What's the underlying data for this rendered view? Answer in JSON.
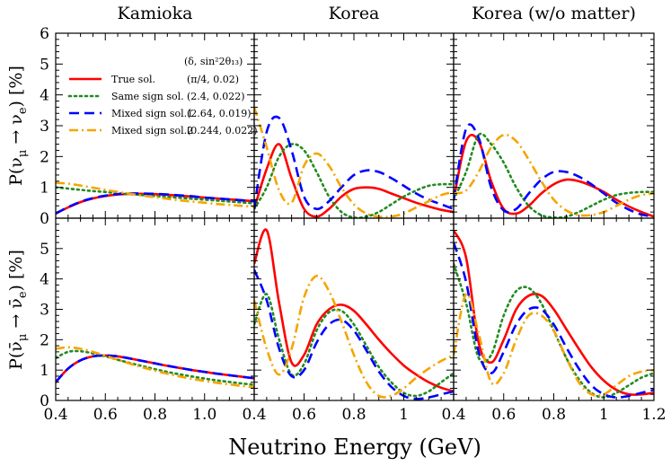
{
  "chart_data": {
    "type": "line",
    "layout": "2 rows x 3 columns, shared axes",
    "column_titles": [
      "Kamioka",
      "Korea",
      "Korea (w/o matter)"
    ],
    "xlabel": "Neutrino Energy (GeV)",
    "x_tick_labels": [
      "0.4",
      "0.6",
      "0.8",
      "1.0",
      "",
      "0.4",
      "0.6",
      "0.8",
      "1",
      "",
      "0.4",
      "0.6",
      "0.8",
      "1",
      "1.2"
    ],
    "xlim": [
      0.4,
      1.2
    ],
    "rows": [
      {
        "ylabel": "P(ν_μ → ν_e) [%]",
        "ylim": [
          0,
          6
        ],
        "y_tick_labels": [
          "0",
          "1",
          "2",
          "3",
          "4",
          "5",
          "6"
        ]
      },
      {
        "ylabel": "P(ν̄_μ → ν̄_e) [%]",
        "ylim": [
          0,
          6
        ],
        "y_tick_labels": [
          "0",
          "1",
          "2",
          "3",
          "4",
          "5",
          ""
        ]
      }
    ],
    "legend": {
      "location": "upper-left of top-left panel",
      "header": "(δ, sin²2θ₁₃)",
      "entries": [
        {
          "label": "True sol.",
          "params": "(π/4, 0.02)",
          "color": "#ff0000",
          "style": "solid"
        },
        {
          "label": "Same sign sol.",
          "params": "(2.4, 0.022)",
          "color": "#228b22",
          "style": "dotted"
        },
        {
          "label": "Mixed sign sol.1",
          "params": "(2.64, 0.019)",
          "color": "#0000ff",
          "style": "dashed"
        },
        {
          "label": "Mixed sign sol.2",
          "params": "(0.244, 0.022)",
          "color": "#f5a500",
          "style": "dashdot"
        }
      ]
    },
    "panels": [
      {
        "row": 0,
        "col": 0,
        "title": "Kamioka",
        "x": [
          0.4,
          0.45,
          0.5,
          0.55,
          0.6,
          0.65,
          0.7,
          0.75,
          0.8,
          0.85,
          0.9,
          0.95,
          1.0,
          1.05,
          1.1,
          1.15,
          1.2
        ],
        "series": [
          {
            "name": "True sol.",
            "values": [
              0.15,
              0.35,
              0.52,
              0.64,
              0.72,
              0.77,
              0.79,
              0.79,
              0.78,
              0.76,
              0.73,
              0.7,
              0.67,
              0.64,
              0.61,
              0.58,
              0.55
            ]
          },
          {
            "name": "Same sign sol.",
            "values": [
              1.0,
              0.96,
              0.92,
              0.88,
              0.85,
              0.81,
              0.78,
              0.75,
              0.72,
              0.69,
              0.66,
              0.63,
              0.6,
              0.57,
              0.54,
              0.51,
              0.48
            ]
          },
          {
            "name": "Mixed sign sol.1",
            "values": [
              0.15,
              0.36,
              0.53,
              0.65,
              0.73,
              0.78,
              0.8,
              0.8,
              0.79,
              0.77,
              0.74,
              0.71,
              0.67,
              0.64,
              0.61,
              0.58,
              0.55
            ]
          },
          {
            "name": "Mixed sign sol.2",
            "values": [
              1.15,
              1.12,
              1.06,
              0.99,
              0.92,
              0.85,
              0.79,
              0.73,
              0.68,
              0.63,
              0.58,
              0.54,
              0.5,
              0.46,
              0.43,
              0.4,
              0.37
            ]
          }
        ]
      },
      {
        "row": 0,
        "col": 1,
        "title": "Korea",
        "x": [
          0.4,
          0.45,
          0.5,
          0.55,
          0.6,
          0.65,
          0.7,
          0.75,
          0.8,
          0.85,
          0.9,
          0.95,
          1.0,
          1.05,
          1.1,
          1.15,
          1.2
        ],
        "series": [
          {
            "name": "True sol.",
            "values": [
              0.3,
              1.6,
              2.4,
              1.3,
              0.3,
              0.05,
              0.3,
              0.7,
              0.95,
              1.0,
              0.95,
              0.8,
              0.65,
              0.5,
              0.38,
              0.27,
              0.2
            ]
          },
          {
            "name": "Same sign sol.",
            "values": [
              0.3,
              1.0,
              2.0,
              2.4,
              2.2,
              1.5,
              0.7,
              0.2,
              0.02,
              0.05,
              0.2,
              0.45,
              0.7,
              0.9,
              1.05,
              1.1,
              1.1
            ]
          },
          {
            "name": "Mixed sign sol.1",
            "values": [
              0.3,
              2.8,
              3.25,
              2.2,
              0.7,
              0.3,
              0.55,
              1.0,
              1.4,
              1.55,
              1.5,
              1.3,
              1.05,
              0.8,
              0.6,
              0.45,
              0.3
            ]
          },
          {
            "name": "Mixed sign sol.2",
            "values": [
              3.6,
              2.3,
              0.9,
              0.5,
              1.7,
              2.1,
              1.7,
              1.0,
              0.45,
              0.15,
              0.05,
              0.05,
              0.15,
              0.35,
              0.55,
              0.75,
              0.85
            ]
          }
        ]
      },
      {
        "row": 0,
        "col": 2,
        "title": "Korea (w/o matter)",
        "x": [
          0.4,
          0.45,
          0.5,
          0.55,
          0.6,
          0.65,
          0.7,
          0.75,
          0.8,
          0.85,
          0.9,
          0.95,
          1.0,
          1.05,
          1.1,
          1.15,
          1.2
        ],
        "series": [
          {
            "name": "True sol.",
            "values": [
              0.6,
              2.5,
              2.5,
              1.2,
              0.3,
              0.15,
              0.4,
              0.8,
              1.1,
              1.25,
              1.2,
              1.05,
              0.85,
              0.6,
              0.38,
              0.2,
              0.05
            ]
          },
          {
            "name": "Same sign sol.",
            "values": [
              0.6,
              1.5,
              2.7,
              2.4,
              1.8,
              1.0,
              0.4,
              0.1,
              0.02,
              0.05,
              0.2,
              0.4,
              0.6,
              0.75,
              0.82,
              0.85,
              0.85
            ]
          },
          {
            "name": "Mixed sign sol.1",
            "values": [
              0.6,
              2.9,
              2.6,
              1.0,
              0.25,
              0.3,
              0.8,
              1.25,
              1.5,
              1.5,
              1.35,
              1.1,
              0.8,
              0.5,
              0.28,
              0.12,
              0.05
            ]
          },
          {
            "name": "Mixed sign sol.2",
            "values": [
              0.8,
              0.9,
              1.5,
              2.3,
              2.7,
              2.5,
              1.9,
              1.2,
              0.6,
              0.25,
              0.1,
              0.1,
              0.2,
              0.4,
              0.6,
              0.75,
              0.8
            ]
          }
        ]
      },
      {
        "row": 1,
        "col": 0,
        "title": "",
        "x": [
          0.4,
          0.45,
          0.5,
          0.55,
          0.6,
          0.65,
          0.7,
          0.75,
          0.8,
          0.85,
          0.9,
          0.95,
          1.0,
          1.05,
          1.1,
          1.15,
          1.2
        ],
        "series": [
          {
            "name": "True sol.",
            "values": [
              0.6,
              1.05,
              1.32,
              1.45,
              1.48,
              1.45,
              1.38,
              1.3,
              1.22,
              1.14,
              1.07,
              1.0,
              0.94,
              0.88,
              0.83,
              0.78,
              0.73
            ]
          },
          {
            "name": "Same sign sol.",
            "values": [
              1.4,
              1.6,
              1.62,
              1.55,
              1.45,
              1.34,
              1.23,
              1.13,
              1.03,
              0.94,
              0.86,
              0.79,
              0.72,
              0.66,
              0.61,
              0.56,
              0.52
            ]
          },
          {
            "name": "Mixed sign sol.1",
            "values": [
              0.6,
              1.05,
              1.32,
              1.45,
              1.48,
              1.45,
              1.38,
              1.3,
              1.22,
              1.14,
              1.07,
              1.0,
              0.94,
              0.88,
              0.83,
              0.78,
              0.73
            ]
          },
          {
            "name": "Mixed sign sol.2",
            "values": [
              1.7,
              1.75,
              1.7,
              1.6,
              1.47,
              1.34,
              1.21,
              1.09,
              0.98,
              0.88,
              0.79,
              0.71,
              0.64,
              0.58,
              0.53,
              0.48,
              0.44
            ]
          }
        ]
      },
      {
        "row": 1,
        "col": 1,
        "title": "",
        "x": [
          0.4,
          0.45,
          0.5,
          0.55,
          0.6,
          0.65,
          0.7,
          0.75,
          0.8,
          0.85,
          0.9,
          0.95,
          1.0,
          1.05,
          1.1,
          1.15,
          1.2
        ],
        "series": [
          {
            "name": "True sol.",
            "values": [
              4.5,
              5.6,
              3.2,
              1.25,
              1.5,
              2.5,
              3.0,
              3.15,
              2.95,
              2.5,
              2.0,
              1.55,
              1.15,
              0.85,
              0.6,
              0.42,
              0.3
            ]
          },
          {
            "name": "Same sign sol.",
            "values": [
              2.5,
              3.5,
              2.0,
              0.85,
              1.2,
              2.3,
              2.9,
              2.95,
              2.5,
              1.8,
              1.1,
              0.6,
              0.25,
              0.15,
              0.3,
              0.6,
              0.9
            ]
          },
          {
            "name": "Mixed sign sol.1",
            "values": [
              4.3,
              3.3,
              1.7,
              0.8,
              1.0,
              1.9,
              2.5,
              2.65,
              2.3,
              1.65,
              0.95,
              0.45,
              0.15,
              0.05,
              0.1,
              0.2,
              0.3
            ]
          },
          {
            "name": "Mixed sign sol.2",
            "values": [
              3.3,
              1.7,
              0.85,
              1.7,
              3.4,
              4.1,
              3.6,
              2.6,
              1.5,
              0.6,
              0.15,
              0.15,
              0.4,
              0.75,
              1.05,
              1.3,
              1.5
            ]
          }
        ]
      },
      {
        "row": 1,
        "col": 2,
        "title": "",
        "x": [
          0.4,
          0.45,
          0.5,
          0.55,
          0.6,
          0.65,
          0.7,
          0.75,
          0.8,
          0.85,
          0.9,
          0.95,
          1.0,
          1.05,
          1.1,
          1.15,
          1.2
        ],
        "series": [
          {
            "name": "True sol.",
            "values": [
              5.6,
              4.7,
              1.9,
              1.25,
              2.0,
              3.0,
              3.45,
              3.45,
              3.0,
              2.35,
              1.7,
              1.1,
              0.65,
              0.35,
              0.2,
              0.2,
              0.25
            ]
          },
          {
            "name": "Same sign sol.",
            "values": [
              4.5,
              3.2,
              1.4,
              1.5,
              2.8,
              3.6,
              3.7,
              3.2,
              2.3,
              1.4,
              0.7,
              0.25,
              0.1,
              0.25,
              0.5,
              0.75,
              0.9
            ]
          },
          {
            "name": "Mixed sign sol.1",
            "values": [
              5.2,
              3.9,
              1.6,
              0.9,
              1.6,
              2.5,
              3.0,
              3.0,
              2.5,
              1.75,
              1.05,
              0.5,
              0.2,
              0.1,
              0.15,
              0.25,
              0.35
            ]
          },
          {
            "name": "Mixed sign sol.2",
            "values": [
              1.5,
              3.5,
              2.2,
              0.6,
              0.9,
              2.0,
              2.8,
              2.8,
              2.3,
              1.4,
              0.6,
              0.2,
              0.2,
              0.5,
              0.8,
              0.95,
              1.0
            ]
          }
        ]
      }
    ]
  }
}
